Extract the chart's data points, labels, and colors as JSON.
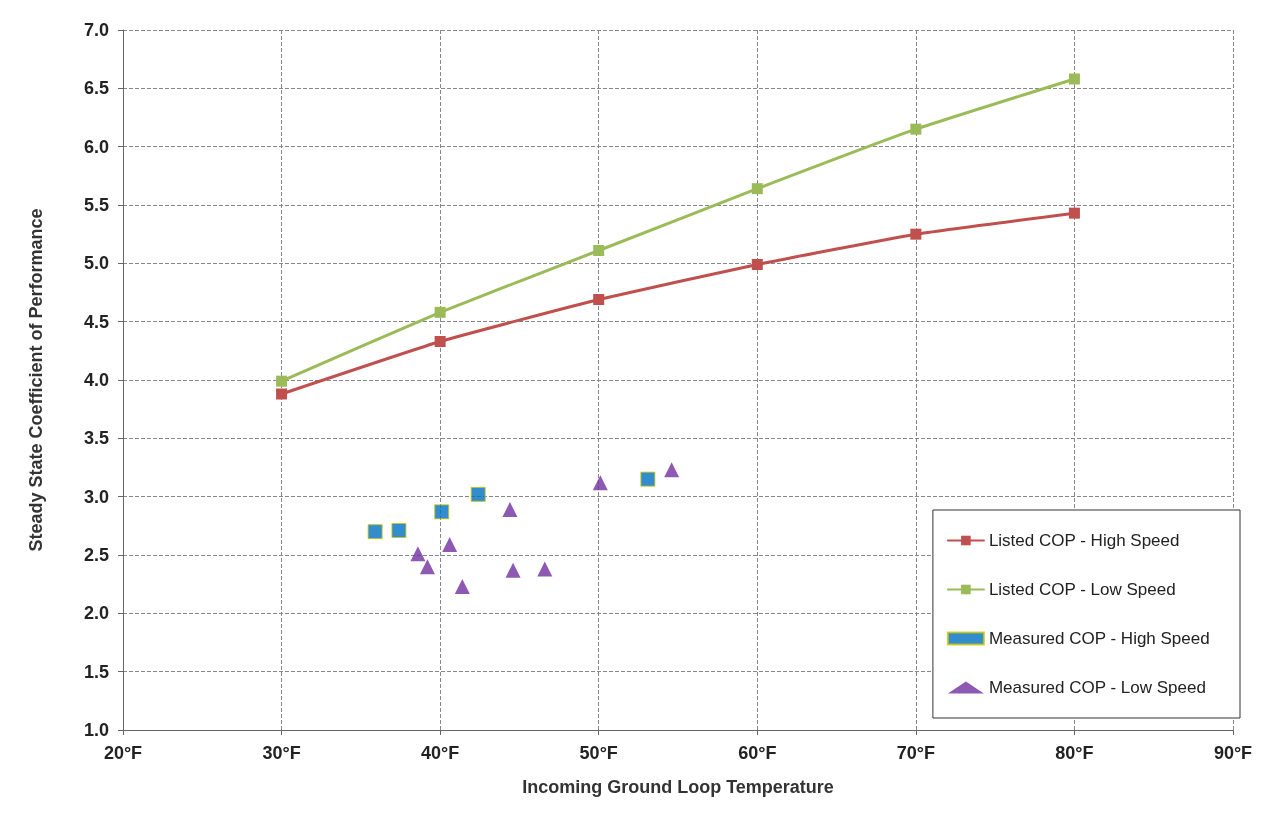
{
  "chart_data": {
    "type": "line",
    "xlabel": "Incoming Ground Loop Temperature",
    "ylabel": "Steady State Coefficient of Performance",
    "xlim": [
      20,
      90
    ],
    "xticks": [
      {
        "value": 20,
        "label": "20°F"
      },
      {
        "value": 30,
        "label": "30°F"
      },
      {
        "value": 40,
        "label": "40°F"
      },
      {
        "value": 50,
        "label": "50°F"
      },
      {
        "value": 60,
        "label": "60°F"
      },
      {
        "value": 70,
        "label": "70°F"
      },
      {
        "value": 80,
        "label": "80°F"
      },
      {
        "value": 90,
        "label": "90°F"
      }
    ],
    "ylim": [
      1,
      7
    ],
    "yticks": [
      {
        "value": 1,
        "label": "1.0"
      },
      {
        "value": 1.5,
        "label": "1.5"
      },
      {
        "value": 2,
        "label": "2.0"
      },
      {
        "value": 2.5,
        "label": "2.5"
      },
      {
        "value": 3,
        "label": "3.0"
      },
      {
        "value": 3.5,
        "label": "3.5"
      },
      {
        "value": 4,
        "label": "4.0"
      },
      {
        "value": 4.5,
        "label": "4.5"
      },
      {
        "value": 5,
        "label": "5.0"
      },
      {
        "value": 5.5,
        "label": "5.5"
      },
      {
        "value": 6,
        "label": "6.0"
      },
      {
        "value": 6.5,
        "label": "6.5"
      },
      {
        "value": 7,
        "label": "7.0"
      }
    ],
    "grid": true,
    "legend": "bottom right",
    "series": [
      {
        "name": "Listed COP - High Speed",
        "marker": "square",
        "color": "#c0504d",
        "x": [
          30,
          40,
          50,
          60,
          70,
          80
        ],
        "values": [
          3.88,
          4.33,
          4.69,
          4.99,
          5.25,
          5.43
        ]
      },
      {
        "name": "Listed COP - Low Speed",
        "marker": "square",
        "color": "#9bbb59",
        "x": [
          30,
          40,
          50,
          60,
          70,
          80
        ],
        "values": [
          3.99,
          4.58,
          5.11,
          5.64,
          6.15,
          6.58
        ]
      },
      {
        "name": "Measured COP - High Speed",
        "type": "scatter",
        "marker": "square",
        "color": "#0070c0",
        "x": [
          35.9,
          37.4,
          40.1,
          42.4,
          53.1
        ],
        "values": [
          2.7,
          2.71,
          2.87,
          3.02,
          3.15
        ]
      },
      {
        "name": "Measured COP - Low Speed",
        "type": "scatter",
        "marker": "triangle",
        "color": "#7030a0",
        "x": [
          38.6,
          39.2,
          40.6,
          41.4,
          44.4,
          44.6,
          46.6,
          50.1,
          54.6
        ],
        "values": [
          2.51,
          2.4,
          2.59,
          2.23,
          2.89,
          2.37,
          2.38,
          3.12,
          3.23
        ]
      }
    ]
  }
}
